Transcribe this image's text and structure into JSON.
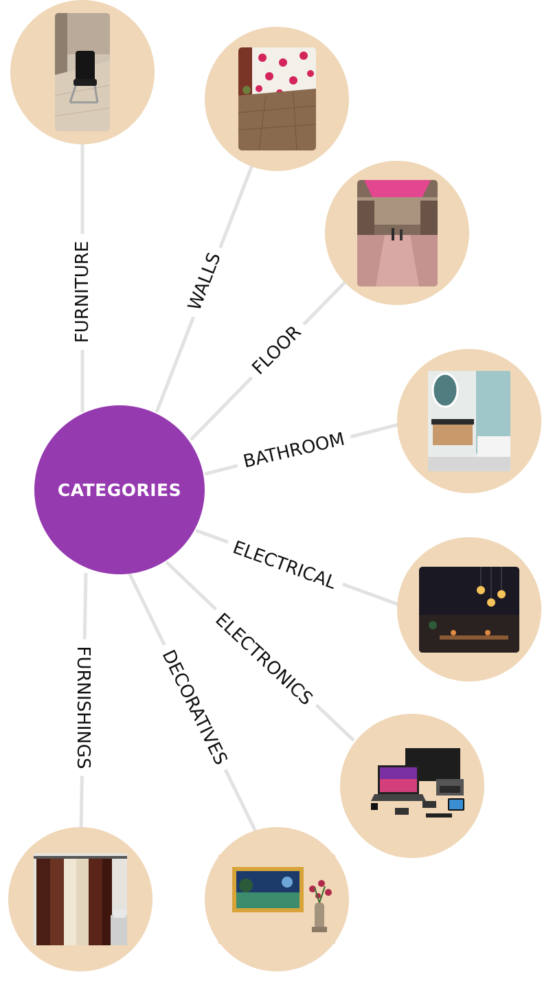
{
  "center": {
    "label": "CATEGORIES",
    "color": "#963ab0"
  },
  "node_color": "#efd7b8",
  "connector_color": "#e2e2e2",
  "categories": [
    {
      "label": "FURNITURE",
      "thumbnail": "chair-in-room"
    },
    {
      "label": "WALLS",
      "thumbnail": "floral-wall-wood-floor"
    },
    {
      "label": "FLOOR",
      "thumbnail": "glossy-mall-floor"
    },
    {
      "label": "BATHROOM",
      "thumbnail": "bathroom-vanity-mirror"
    },
    {
      "label": "ELECTRICAL",
      "thumbnail": "hanging-bulbs-night"
    },
    {
      "label": "ELECTRONICS",
      "thumbnail": "computers-and-gadgets"
    },
    {
      "label": "DECORATIVES",
      "thumbnail": "painting-and-flower-vase"
    },
    {
      "label": "FURNISHINGS",
      "thumbnail": "curtains"
    }
  ]
}
